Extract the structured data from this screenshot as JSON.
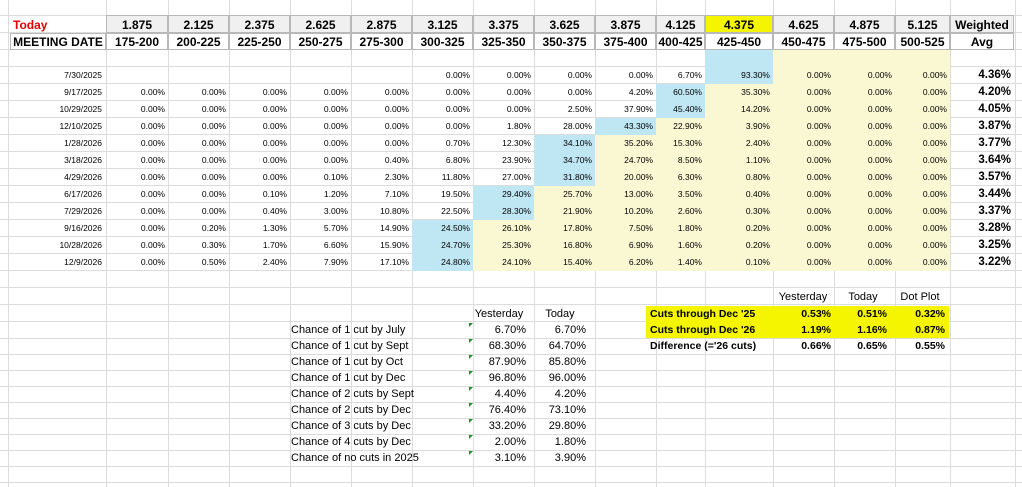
{
  "header": {
    "today_label": "Today",
    "meeting_date_label": "MEETING DATE",
    "rates": [
      "1.875",
      "2.125",
      "2.375",
      "2.625",
      "2.875",
      "3.125",
      "3.375",
      "3.625",
      "3.875",
      "4.125",
      "4.375",
      "4.625",
      "4.875",
      "5.125"
    ],
    "ranges": [
      "175-200",
      "200-225",
      "225-250",
      "250-275",
      "275-300",
      "300-325",
      "325-350",
      "350-375",
      "375-400",
      "400-425",
      "425-450",
      "450-475",
      "475-500",
      "500-525"
    ],
    "weighted_label": "Weighted",
    "avg_label": "Avg",
    "highlight_color": "#f5f500"
  },
  "meetings": [
    {
      "date": "7/30/2025",
      "values": [
        "",
        "",
        "",
        "",
        "",
        "0.00%",
        "0.00%",
        "0.00%",
        "0.00%",
        "6.70%",
        "93.30%",
        "0.00%",
        "0.00%",
        "0.00%"
      ],
      "avg": "4.36%"
    },
    {
      "date": "9/17/2025",
      "values": [
        "0.00%",
        "0.00%",
        "0.00%",
        "0.00%",
        "0.00%",
        "0.00%",
        "0.00%",
        "0.00%",
        "4.20%",
        "60.50%",
        "35.30%",
        "0.00%",
        "0.00%",
        "0.00%"
      ],
      "avg": "4.20%"
    },
    {
      "date": "10/29/2025",
      "values": [
        "0.00%",
        "0.00%",
        "0.00%",
        "0.00%",
        "0.00%",
        "0.00%",
        "0.00%",
        "2.50%",
        "37.90%",
        "45.40%",
        "14.20%",
        "0.00%",
        "0.00%",
        "0.00%"
      ],
      "avg": "4.05%"
    },
    {
      "date": "12/10/2025",
      "values": [
        "0.00%",
        "0.00%",
        "0.00%",
        "0.00%",
        "0.00%",
        "0.00%",
        "1.80%",
        "28.00%",
        "43.30%",
        "22.90%",
        "3.90%",
        "0.00%",
        "0.00%",
        "0.00%"
      ],
      "avg": "3.87%"
    },
    {
      "date": "1/28/2026",
      "values": [
        "0.00%",
        "0.00%",
        "0.00%",
        "0.00%",
        "0.00%",
        "0.70%",
        "12.30%",
        "34.10%",
        "35.20%",
        "15.30%",
        "2.40%",
        "0.00%",
        "0.00%",
        "0.00%"
      ],
      "avg": "3.77%"
    },
    {
      "date": "3/18/2026",
      "values": [
        "0.00%",
        "0.00%",
        "0.00%",
        "0.00%",
        "0.40%",
        "6.80%",
        "23.90%",
        "34.70%",
        "24.70%",
        "8.50%",
        "1.10%",
        "0.00%",
        "0.00%",
        "0.00%"
      ],
      "avg": "3.64%"
    },
    {
      "date": "4/29/2026",
      "values": [
        "0.00%",
        "0.00%",
        "0.00%",
        "0.10%",
        "2.30%",
        "11.80%",
        "27.00%",
        "31.80%",
        "20.00%",
        "6.30%",
        "0.80%",
        "0.00%",
        "0.00%",
        "0.00%"
      ],
      "avg": "3.57%"
    },
    {
      "date": "6/17/2026",
      "values": [
        "0.00%",
        "0.00%",
        "0.10%",
        "1.20%",
        "7.10%",
        "19.50%",
        "29.40%",
        "25.70%",
        "13.00%",
        "3.50%",
        "0.40%",
        "0.00%",
        "0.00%",
        "0.00%"
      ],
      "avg": "3.44%"
    },
    {
      "date": "7/29/2026",
      "values": [
        "0.00%",
        "0.00%",
        "0.40%",
        "3.00%",
        "10.80%",
        "22.50%",
        "28.30%",
        "21.90%",
        "10.20%",
        "2.60%",
        "0.30%",
        "0.00%",
        "0.00%",
        "0.00%"
      ],
      "avg": "3.37%"
    },
    {
      "date": "9/16/2026",
      "values": [
        "0.00%",
        "0.20%",
        "1.30%",
        "5.70%",
        "14.90%",
        "24.50%",
        "26.10%",
        "17.80%",
        "7.50%",
        "1.80%",
        "0.20%",
        "0.00%",
        "0.00%",
        "0.00%"
      ],
      "avg": "3.28%"
    },
    {
      "date": "10/28/2026",
      "values": [
        "0.00%",
        "0.30%",
        "1.70%",
        "6.60%",
        "15.90%",
        "24.70%",
        "25.30%",
        "16.80%",
        "6.90%",
        "1.60%",
        "0.20%",
        "0.00%",
        "0.00%",
        "0.00%"
      ],
      "avg": "3.25%"
    },
    {
      "date": "12/9/2026",
      "values": [
        "0.00%",
        "0.50%",
        "2.40%",
        "7.90%",
        "17.10%",
        "24.80%",
        "24.10%",
        "15.40%",
        "6.20%",
        "1.40%",
        "0.10%",
        "0.00%",
        "0.00%",
        "0.00%"
      ],
      "avg": "3.22%"
    }
  ],
  "colors": {
    "blue": "#bfe6f3",
    "cream": "#faf8d2",
    "yellow": "#f5f500",
    "red": "#e60000",
    "indicator": "#1e8a1e"
  },
  "chances": {
    "yesterday_label": "Yesterday",
    "today_label": "Today",
    "rows": [
      {
        "label": "Chance of 1 cut by July",
        "yesterday": "6.70%",
        "today": "6.70%"
      },
      {
        "label": "Chance of 1 cut by Sept",
        "yesterday": "68.30%",
        "today": "64.70%"
      },
      {
        "label": "Chance of 1 cut by Oct",
        "yesterday": "87.90%",
        "today": "85.80%"
      },
      {
        "label": "Chance of 1 cut by Dec",
        "yesterday": "96.80%",
        "today": "96.00%"
      },
      {
        "label": "Chance of 2 cuts by Sept",
        "yesterday": "4.40%",
        "today": "4.20%"
      },
      {
        "label": "Chance of 2 cuts by Dec",
        "yesterday": "76.40%",
        "today": "73.10%"
      },
      {
        "label": "Chance of 3 cuts by Dec",
        "yesterday": "33.20%",
        "today": "29.80%"
      },
      {
        "label": "Chance of 4 cuts by Dec",
        "yesterday": "2.00%",
        "today": "1.80%"
      },
      {
        "label": "Chance of no cuts in 2025",
        "yesterday": "3.10%",
        "today": "3.90%"
      }
    ]
  },
  "cuts": {
    "yesterday_label": "Yesterday",
    "today_label": "Today",
    "dotplot_label": "Dot Plot",
    "rows": [
      {
        "label": "Cuts through Dec '25",
        "yesterday": "0.53%",
        "today": "0.51%",
        "dotplot": "0.32%"
      },
      {
        "label": "Cuts through Dec '26",
        "yesterday": "1.19%",
        "today": "1.16%",
        "dotplot": "0.87%"
      },
      {
        "label": "Difference (='26 cuts)",
        "yesterday": "0.66%",
        "today": "0.65%",
        "dotplot": "0.55%"
      }
    ]
  }
}
